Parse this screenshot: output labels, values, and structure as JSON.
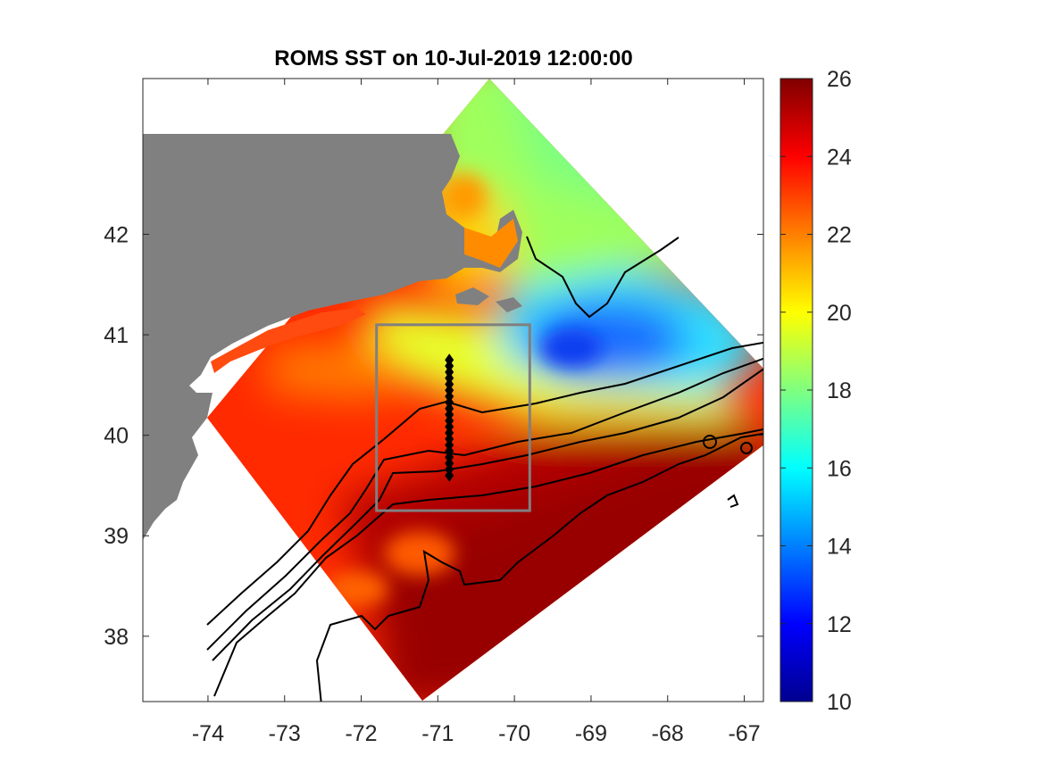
{
  "figure": {
    "title": "ROMS SST on 10-Jul-2019 12:00:00"
  },
  "map": {
    "lon_range": [
      -74.85,
      -66.75
    ],
    "lat_range": [
      37.35,
      43.55
    ],
    "x_ticks": [
      "-74",
      "-73",
      "-72",
      "-71",
      "-70",
      "-69",
      "-68",
      "-67"
    ],
    "x_tick_values": [
      -74,
      -73,
      -72,
      -71,
      -70,
      -69,
      -68,
      -67
    ],
    "y_ticks": [
      "38",
      "39",
      "40",
      "41",
      "42"
    ],
    "y_tick_values": [
      38,
      39,
      40,
      41,
      42
    ],
    "land_color": "#808080",
    "selection_box": {
      "lon": [
        -71.8,
        -69.8
      ],
      "lat": [
        39.25,
        41.1
      ],
      "color": "#808080"
    },
    "transect": {
      "lon": -70.85,
      "lat_start": 39.6,
      "lat_end": 40.75,
      "points": 20
    }
  },
  "colorbar": {
    "range": [
      10,
      26
    ],
    "ticks": [
      "10",
      "12",
      "14",
      "16",
      "18",
      "20",
      "22",
      "24",
      "26"
    ],
    "tick_values": [
      10,
      12,
      14,
      16,
      18,
      20,
      22,
      24,
      26
    ],
    "colormap": "jet",
    "stops": [
      "#00008f",
      "#0000ff",
      "#00ffff",
      "#ffff00",
      "#ff0000",
      "#800000"
    ]
  }
}
